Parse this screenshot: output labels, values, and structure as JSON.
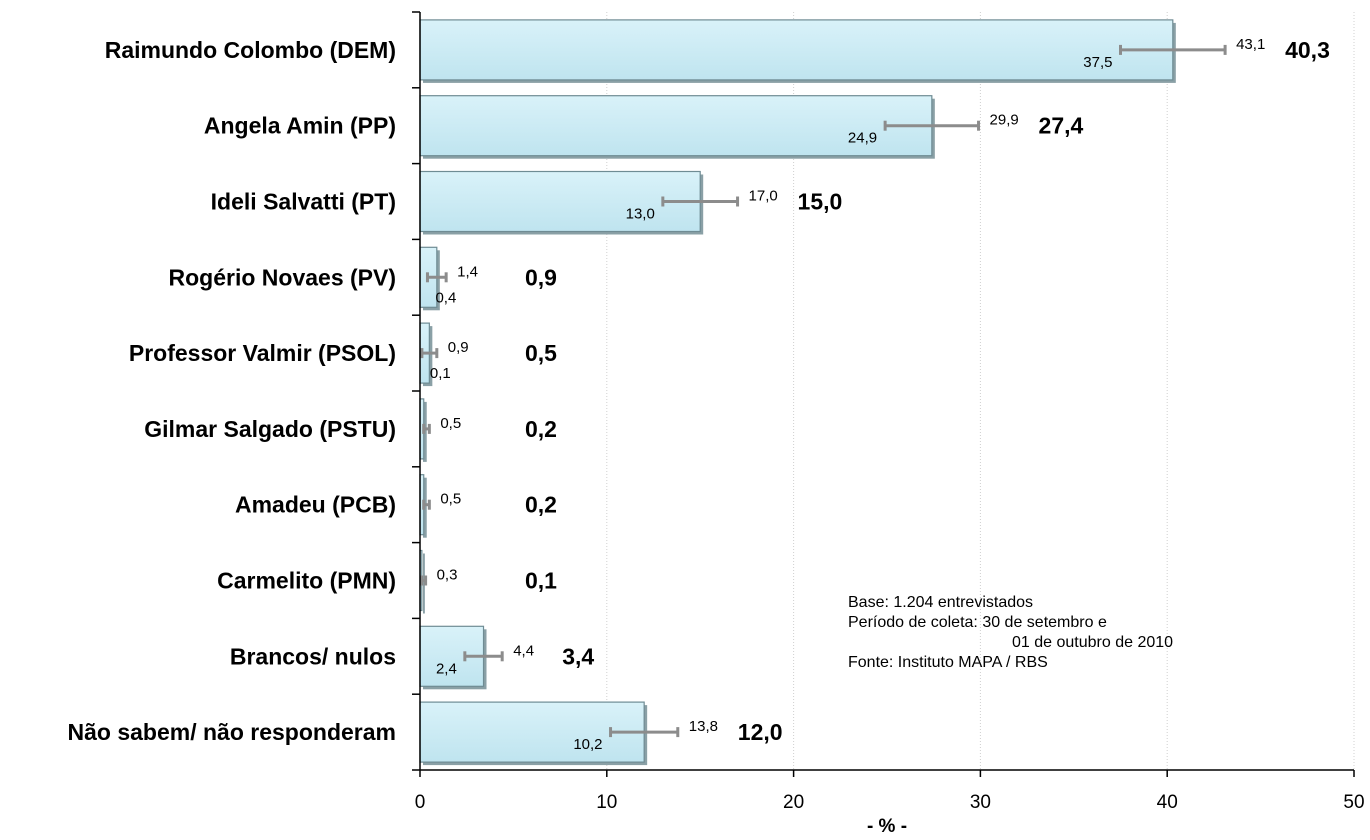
{
  "chart_data": {
    "type": "bar",
    "orientation": "horizontal",
    "categories": [
      "Raimundo Colombo (DEM)",
      "Angela Amin (PP)",
      "Ideli Salvatti (PT)",
      "Rogério Novaes (PV)",
      "Professor Valmir (PSOL)",
      "Gilmar Salgado (PSTU)",
      "Amadeu (PCB)",
      "Carmelito (PMN)",
      "Brancos/ nulos",
      "Não sabem/ não responderam"
    ],
    "values": [
      40.3,
      27.4,
      15.0,
      0.9,
      0.5,
      0.2,
      0.2,
      0.1,
      3.4,
      12.0
    ],
    "value_labels": [
      "40,3",
      "27,4",
      "15,0",
      "0,9",
      "0,5",
      "0,2",
      "0,2",
      "0,1",
      "3,4",
      "12,0"
    ],
    "error_low": [
      37.5,
      24.9,
      13.0,
      0.4,
      0.1,
      null,
      null,
      null,
      2.4,
      10.2
    ],
    "error_high": [
      43.1,
      29.9,
      17.0,
      1.4,
      0.9,
      0.5,
      0.5,
      0.3,
      4.4,
      13.8
    ],
    "error_low_labels": [
      "37,5",
      "24,9",
      "13,0",
      "0,4",
      "0,1",
      "",
      "",
      "",
      "2,4",
      "10,2"
    ],
    "error_high_labels": [
      "43,1",
      "29,9",
      "17,0",
      "1,4",
      "0,9",
      "0,5",
      "0,5",
      "0,3",
      "4,4",
      "13,8"
    ],
    "xlabel": "- % -",
    "xlim": [
      0,
      50
    ],
    "xticks": [
      0,
      10,
      20,
      30,
      40,
      50
    ],
    "xtick_labels": [
      "0",
      "10",
      "20",
      "30",
      "40",
      "50"
    ],
    "grid": "vertical dotted",
    "bar_color": "#c5e8f2",
    "bar_edge_color": "#6f8c94",
    "error_bar_color": "#8c8c8c"
  },
  "notes": {
    "line1": "Base: 1.204 entrevistados",
    "line2": "Período de coleta: 30 de setembro e",
    "line3": "01 de outubro de 2010",
    "line4": "Fonte: Instituto MAPA / RBS"
  }
}
